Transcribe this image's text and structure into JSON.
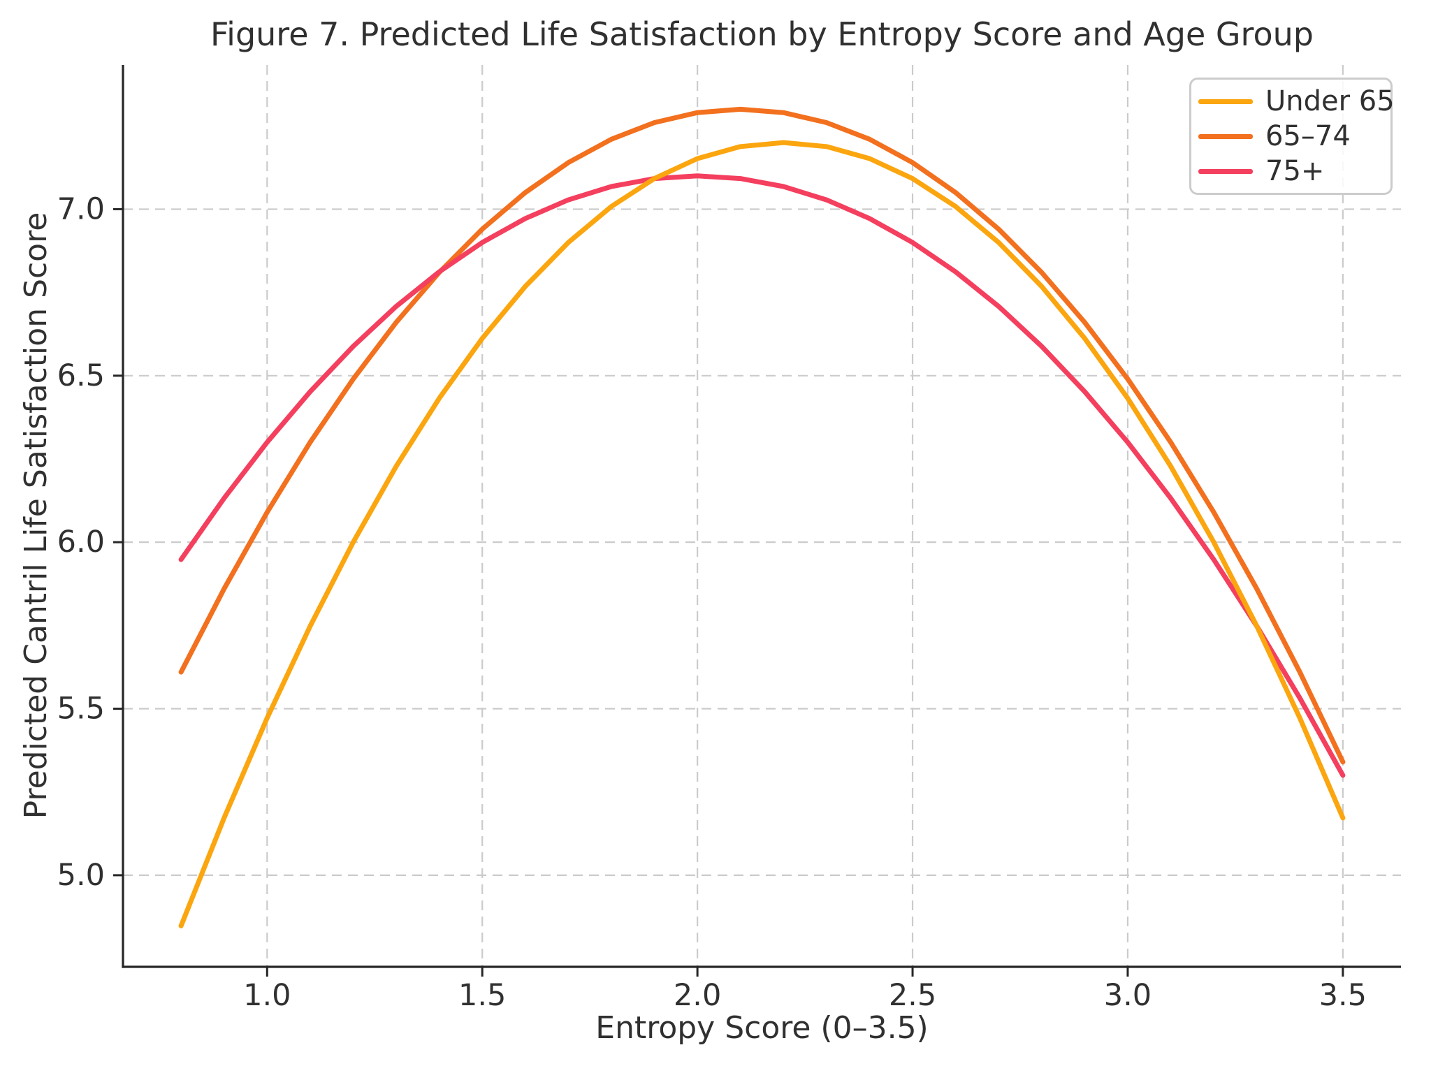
{
  "chart_data": {
    "type": "line",
    "title": "Figure 7. Predicted Life Satisfaction by Entropy Score and Age Group",
    "xlabel": "Entropy Score (0–3.5)",
    "ylabel": "Predicted Cantril Life Satisfaction Score",
    "xlim": [
      0.665,
      3.635
    ],
    "ylim": [
      4.725,
      7.433
    ],
    "xticks": {
      "values": [
        1.0,
        1.5,
        2.0,
        2.5,
        3.0,
        3.5
      ],
      "labels": [
        "1.0",
        "1.5",
        "2.0",
        "2.5",
        "3.0",
        "3.5"
      ]
    },
    "yticks": {
      "values": [
        5.0,
        5.5,
        6.0,
        6.5,
        7.0
      ],
      "labels": [
        "5.0",
        "5.5",
        "6.0",
        "6.5",
        "7.0"
      ]
    },
    "grid": {
      "visible": true,
      "style": "dashed",
      "color": "#cbcbcb"
    },
    "legend": {
      "position": "upper right",
      "entries": [
        "Under 65",
        "65–74",
        "75+"
      ]
    },
    "x": [
      0.8,
      0.9,
      1.0,
      1.1,
      1.2,
      1.3,
      1.4,
      1.5,
      1.6,
      1.7,
      1.8,
      1.9,
      2.0,
      2.1,
      2.2,
      2.3,
      2.4,
      2.5,
      2.6,
      2.7,
      2.8,
      2.9,
      3.0,
      3.1,
      3.2,
      3.3,
      3.4,
      3.5
    ],
    "series": [
      {
        "key": "under-65",
        "name": "Under 65",
        "color": "#FBA50F",
        "values": [
          4.848,
          5.172,
          5.472,
          5.748,
          6.0,
          6.228,
          6.432,
          6.612,
          6.768,
          6.9,
          7.008,
          7.092,
          7.152,
          7.188,
          7.2,
          7.188,
          7.152,
          7.092,
          7.008,
          6.9,
          6.768,
          6.612,
          6.432,
          6.228,
          6.0,
          5.748,
          5.472,
          5.172
        ]
      },
      {
        "key": "65-74",
        "name": "65–74",
        "color": "#F2701E",
        "values": [
          5.61,
          5.86,
          6.09,
          6.3,
          6.49,
          6.66,
          6.81,
          6.94,
          7.05,
          7.14,
          7.21,
          7.26,
          7.29,
          7.3,
          7.29,
          7.26,
          7.21,
          7.14,
          7.05,
          6.94,
          6.81,
          6.66,
          6.49,
          6.3,
          6.09,
          5.86,
          5.61,
          5.34
        ]
      },
      {
        "key": "75-plus",
        "name": "75+",
        "color": "#F43F5E",
        "values": [
          5.948,
          6.132,
          6.3,
          6.452,
          6.588,
          6.708,
          6.812,
          6.9,
          6.972,
          7.028,
          7.068,
          7.092,
          7.1,
          7.092,
          7.068,
          7.028,
          6.972,
          6.9,
          6.812,
          6.708,
          6.588,
          6.452,
          6.3,
          6.132,
          5.948,
          5.748,
          5.532,
          5.3
        ]
      }
    ],
    "draw_order": [
      1,
      2,
      0
    ]
  },
  "colors": {
    "text": "#303030",
    "spine": "#262626",
    "grid": "#cbcbcb",
    "background": "#ffffff",
    "legend_border": "#cccccc"
  }
}
